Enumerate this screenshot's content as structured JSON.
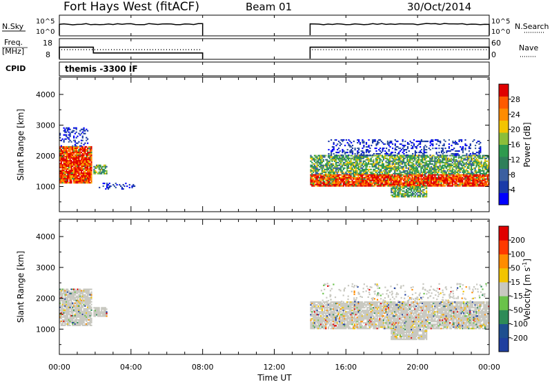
{
  "header": {
    "title": "Fort Hays West (fitACF)",
    "beam": "Beam 01",
    "date": "30/Oct/2014"
  },
  "top_panels": {
    "nsky_label": "N.Sky",
    "nsearch_label": "N.Search",
    "nsky_ticks": [
      "10^5",
      "10^0"
    ],
    "nsearch_ticks": [
      "10^5",
      "10^0"
    ],
    "freq_label_1": "Freq.",
    "freq_label_2": "[MHz]",
    "freq_ticks": [
      "18",
      "8"
    ],
    "nave_label": "Nave",
    "nave_ticks": [
      "60",
      "0"
    ],
    "cpid_label": "CPID",
    "cpid_value": "themis -3300 IF"
  },
  "colorbars": {
    "power": {
      "label": "Power [dB]",
      "ticks": [
        "28",
        "24",
        "20",
        "16",
        "12",
        "8",
        "4"
      ],
      "colors": [
        "#0000ff",
        "#1a3aa8",
        "#3b5fa0",
        "#2f7f5a",
        "#2e9a4e",
        "#8bbe3a",
        "#f2c400",
        "#ff8c00",
        "#ff5a00",
        "#e00000"
      ]
    },
    "velocity": {
      "label_main": "Velocity [m s",
      "label_sup": "-1",
      "label_end": "]",
      "ticks": [
        "200",
        "100",
        "50",
        "15",
        "-15",
        "-50",
        "-100",
        "-200"
      ],
      "colors": [
        "#1f3f9f",
        "#1e4f8f",
        "#2e8b57",
        "#6ac24a",
        "#c8c8c0",
        "#f2c400",
        "#ff8c00",
        "#ff3a00",
        "#e00000"
      ]
    }
  },
  "chart_data": {
    "type": "heatmap",
    "x_axis": {
      "label": "Time UT",
      "ticks": [
        "00:00",
        "04:00",
        "08:00",
        "12:00",
        "16:00",
        "20:00",
        "00:00"
      ],
      "range_hours": [
        0,
        24
      ]
    },
    "y_axis": {
      "label": "Slant Range [km]",
      "ticks": [
        "4000",
        "3000",
        "2000",
        "1000"
      ],
      "range_km": [
        180,
        4560
      ]
    },
    "operating_intervals_ut": [
      [
        0.0,
        8.0
      ],
      [
        14.0,
        24.0
      ]
    ],
    "frequency_steps": [
      {
        "start_h": 0.0,
        "end_h": 1.9,
        "freq_mhz": 14.5
      },
      {
        "start_h": 1.9,
        "end_h": 8.0,
        "freq_mhz": 11.0
      },
      {
        "start_h": 14.0,
        "end_h": 24.0,
        "freq_mhz": 14.5
      }
    ],
    "power_panel": {
      "quantity": "Power [dB]",
      "regions": [
        {
          "t": [
            0.0,
            1.8
          ],
          "r": [
            1100,
            2300
          ],
          "level": "high-core"
        },
        {
          "t": [
            0.0,
            1.6
          ],
          "r": [
            2300,
            2900
          ],
          "level": "low"
        },
        {
          "t": [
            1.9,
            2.6
          ],
          "r": [
            1400,
            1700
          ],
          "level": "medium"
        },
        {
          "t": [
            2.2,
            4.2
          ],
          "r": [
            900,
            1100
          ],
          "level": "low"
        },
        {
          "t": [
            14.0,
            24.0
          ],
          "r": [
            1000,
            1400
          ],
          "level": "high-core"
        },
        {
          "t": [
            14.0,
            24.0
          ],
          "r": [
            1400,
            2000
          ],
          "level": "medium"
        },
        {
          "t": [
            15.0,
            23.5
          ],
          "r": [
            2000,
            2500
          ],
          "level": "low"
        },
        {
          "t": [
            18.5,
            20.5
          ],
          "r": [
            650,
            1000
          ],
          "level": "medium"
        }
      ]
    },
    "velocity_panel": {
      "quantity": "Velocity [m s-1]",
      "dominant_value_range": [
        -15,
        15
      ],
      "regions": [
        {
          "t": [
            0.0,
            1.8
          ],
          "r": [
            1100,
            2300
          ],
          "level": "near-zero"
        },
        {
          "t": [
            1.9,
            2.6
          ],
          "r": [
            1400,
            1700
          ],
          "level": "near-zero"
        },
        {
          "t": [
            14.0,
            24.0
          ],
          "r": [
            1000,
            1900
          ],
          "level": "near-zero"
        },
        {
          "t": [
            18.5,
            20.5
          ],
          "r": [
            650,
            1000
          ],
          "level": "near-zero"
        }
      ]
    }
  }
}
